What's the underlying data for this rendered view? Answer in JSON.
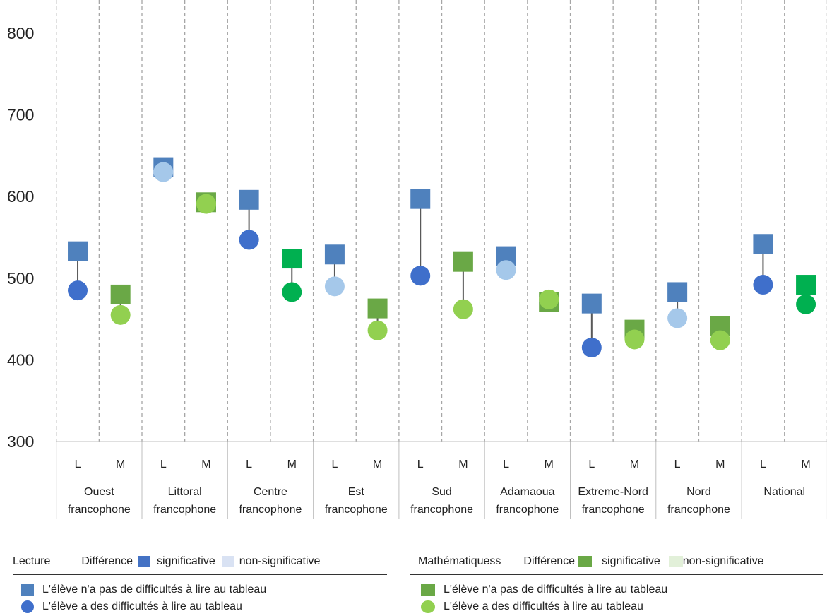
{
  "chart_data": {
    "type": "scatter",
    "ylim": [
      300,
      800
    ],
    "yticks": [
      300,
      400,
      500,
      600,
      700,
      800
    ],
    "regions": [
      {
        "line1": "Ouest",
        "line2": "francophone",
        "L": {
          "label": "L",
          "sans": 533,
          "avec": 485,
          "significant": true
        },
        "M": {
          "label": "M",
          "sans": 480,
          "avec": 455,
          "significant": false
        }
      },
      {
        "line1": "Littoral",
        "line2": "francophone",
        "L": {
          "label": "L",
          "sans": 636,
          "avec": 630,
          "significant": false
        },
        "M": {
          "label": "M",
          "sans": 593,
          "avec": 591,
          "significant": false
        }
      },
      {
        "line1": "Centre",
        "line2": "francophone",
        "L": {
          "label": "L",
          "sans": 596,
          "avec": 547,
          "significant": true
        },
        "M": {
          "label": "M",
          "sans": 524,
          "avec": 483,
          "significant": true
        }
      },
      {
        "line1": "Est",
        "line2": "francophone",
        "L": {
          "label": "L",
          "sans": 529,
          "avec": 490,
          "significant": false
        },
        "M": {
          "label": "M",
          "sans": 463,
          "avec": 436,
          "significant": false
        }
      },
      {
        "line1": "Sud",
        "line2": "francophone",
        "L": {
          "label": "L",
          "sans": 597,
          "avec": 503,
          "significant": true
        },
        "M": {
          "label": "M",
          "sans": 520,
          "avec": 462,
          "significant": false
        }
      },
      {
        "line1": "Adamaoua",
        "line2": "francophone",
        "L": {
          "label": "L",
          "sans": 527,
          "avec": 510,
          "significant": false
        },
        "M": {
          "label": "M",
          "sans": 471,
          "avec": 474,
          "significant": false
        }
      },
      {
        "line1": "Extreme-Nord",
        "line2": "francophone",
        "L": {
          "label": "L",
          "sans": 469,
          "avec": 415,
          "significant": true
        },
        "M": {
          "label": "M",
          "sans": 437,
          "avec": 425,
          "significant": false
        }
      },
      {
        "line1": "Nord",
        "line2": "francophone",
        "L": {
          "label": "L",
          "sans": 483,
          "avec": 451,
          "significant": false
        },
        "M": {
          "label": "M",
          "sans": 441,
          "avec": 424,
          "significant": false
        }
      },
      {
        "line1": "National",
        "line2": "",
        "L": {
          "label": "L",
          "sans": 542,
          "avec": 492,
          "significant": true
        },
        "M": {
          "label": "M",
          "sans": 492,
          "avec": 468,
          "significant": true
        }
      }
    ],
    "colors": {
      "lecture_square": "#4f81bd",
      "lecture_sig": "#3f6fcb",
      "lecture_nonsig": "#a5c8ea",
      "math_square": "#00b050",
      "math_square_nonsig": "#6aa846",
      "math_sig": "#00b050",
      "math_nonsig": "#92d050",
      "legend_lecture_nonsig": "#d9e2f3",
      "legend_math_sig": "#6aa846",
      "legend_math_nonsig": "#e2f0d9",
      "connector": "#595959",
      "grid": "#a6a6a6"
    }
  },
  "legend": {
    "lecture": {
      "title": "Lecture",
      "difference": "Différence",
      "significative": "significative",
      "non_significative": "non-significative",
      "sans_difficulte": "L'élève n'a pas de difficultés à lire au tableau",
      "avec_difficulte": "L'élève a des difficultés à lire au tableau"
    },
    "math": {
      "title": "Mathématiquess",
      "difference": "Différence",
      "significative": "significative",
      "non_significative": "non-significative",
      "sans_difficulte": "L'élève n'a pas de difficultés à lire au tableau",
      "avec_difficulte": "L'élève a des difficultés à lire au tableau"
    }
  }
}
